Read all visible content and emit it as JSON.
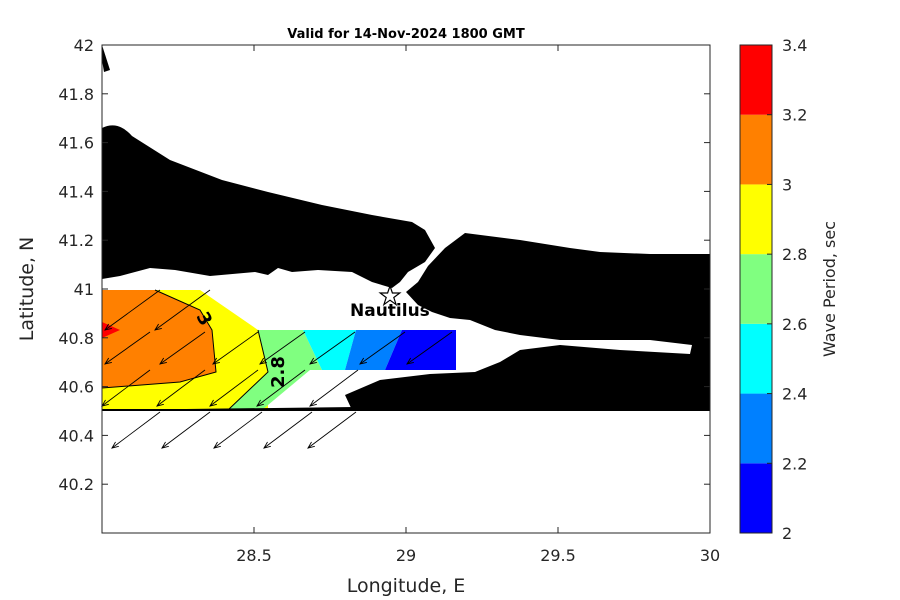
{
  "title": "Valid for 14-Nov-2024 1800 GMT",
  "xlabel": "Longitude, E",
  "ylabel": "Latitude, N",
  "colorbar_label": "Wave Period, sec",
  "place_label": "Nautilus",
  "contour_labels": [
    "3",
    "2.8"
  ],
  "chart_data": {
    "type": "heatmap",
    "xlim": [
      28.0,
      30.0
    ],
    "ylim": [
      40.0,
      42.0
    ],
    "xticks": [
      "28.5",
      "29",
      "29.5",
      "30"
    ],
    "yticks": [
      "40.2",
      "40.4",
      "40.6",
      "40.8",
      "41",
      "41.2",
      "41.4",
      "41.6",
      "41.8",
      "42"
    ],
    "colorbar": {
      "levels": [
        2.0,
        2.2,
        2.4,
        2.6,
        2.8,
        3.0,
        3.2,
        3.4
      ],
      "ticks": [
        "2",
        "2.2",
        "2.4",
        "2.6",
        "2.8",
        "3",
        "3.2",
        "3.4"
      ],
      "colors": [
        "#0000ff",
        "#0080ff",
        "#00ffff",
        "#80ff80",
        "#ffff00",
        "#ff8000",
        "#ff0000"
      ]
    },
    "station": {
      "name": "Nautilus",
      "lon": 28.95,
      "lat": 40.97
    },
    "land_color": "#000000",
    "arrow_direction": "toward south-west"
  }
}
